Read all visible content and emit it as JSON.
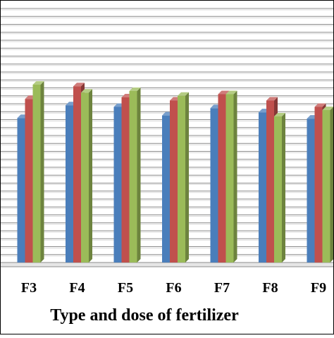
{
  "chart_data": {
    "type": "bar",
    "style": "3d-clustered",
    "categories": [
      "F3",
      "F4",
      "F5",
      "F6",
      "F7",
      "F8",
      "F9"
    ],
    "series": [
      {
        "color": "#4a7ebb",
        "values": [
          45.5,
          49.5,
          49.0,
          46.3,
          48.6,
          47.3,
          45.3
        ]
      },
      {
        "color": "#c0504d",
        "values": [
          51.5,
          55.5,
          52.0,
          51.0,
          53.0,
          51.0,
          49.0
        ]
      },
      {
        "color": "#9bbb59",
        "values": [
          56.0,
          53.5,
          54.0,
          52.5,
          53.0,
          46.0,
          48.0
        ]
      }
    ],
    "ylim": [
      0,
      80
    ],
    "grid_step": 2.5,
    "grid": true,
    "xlabel": "Type and dose of fertilizer",
    "ylabel": "",
    "title": ""
  }
}
